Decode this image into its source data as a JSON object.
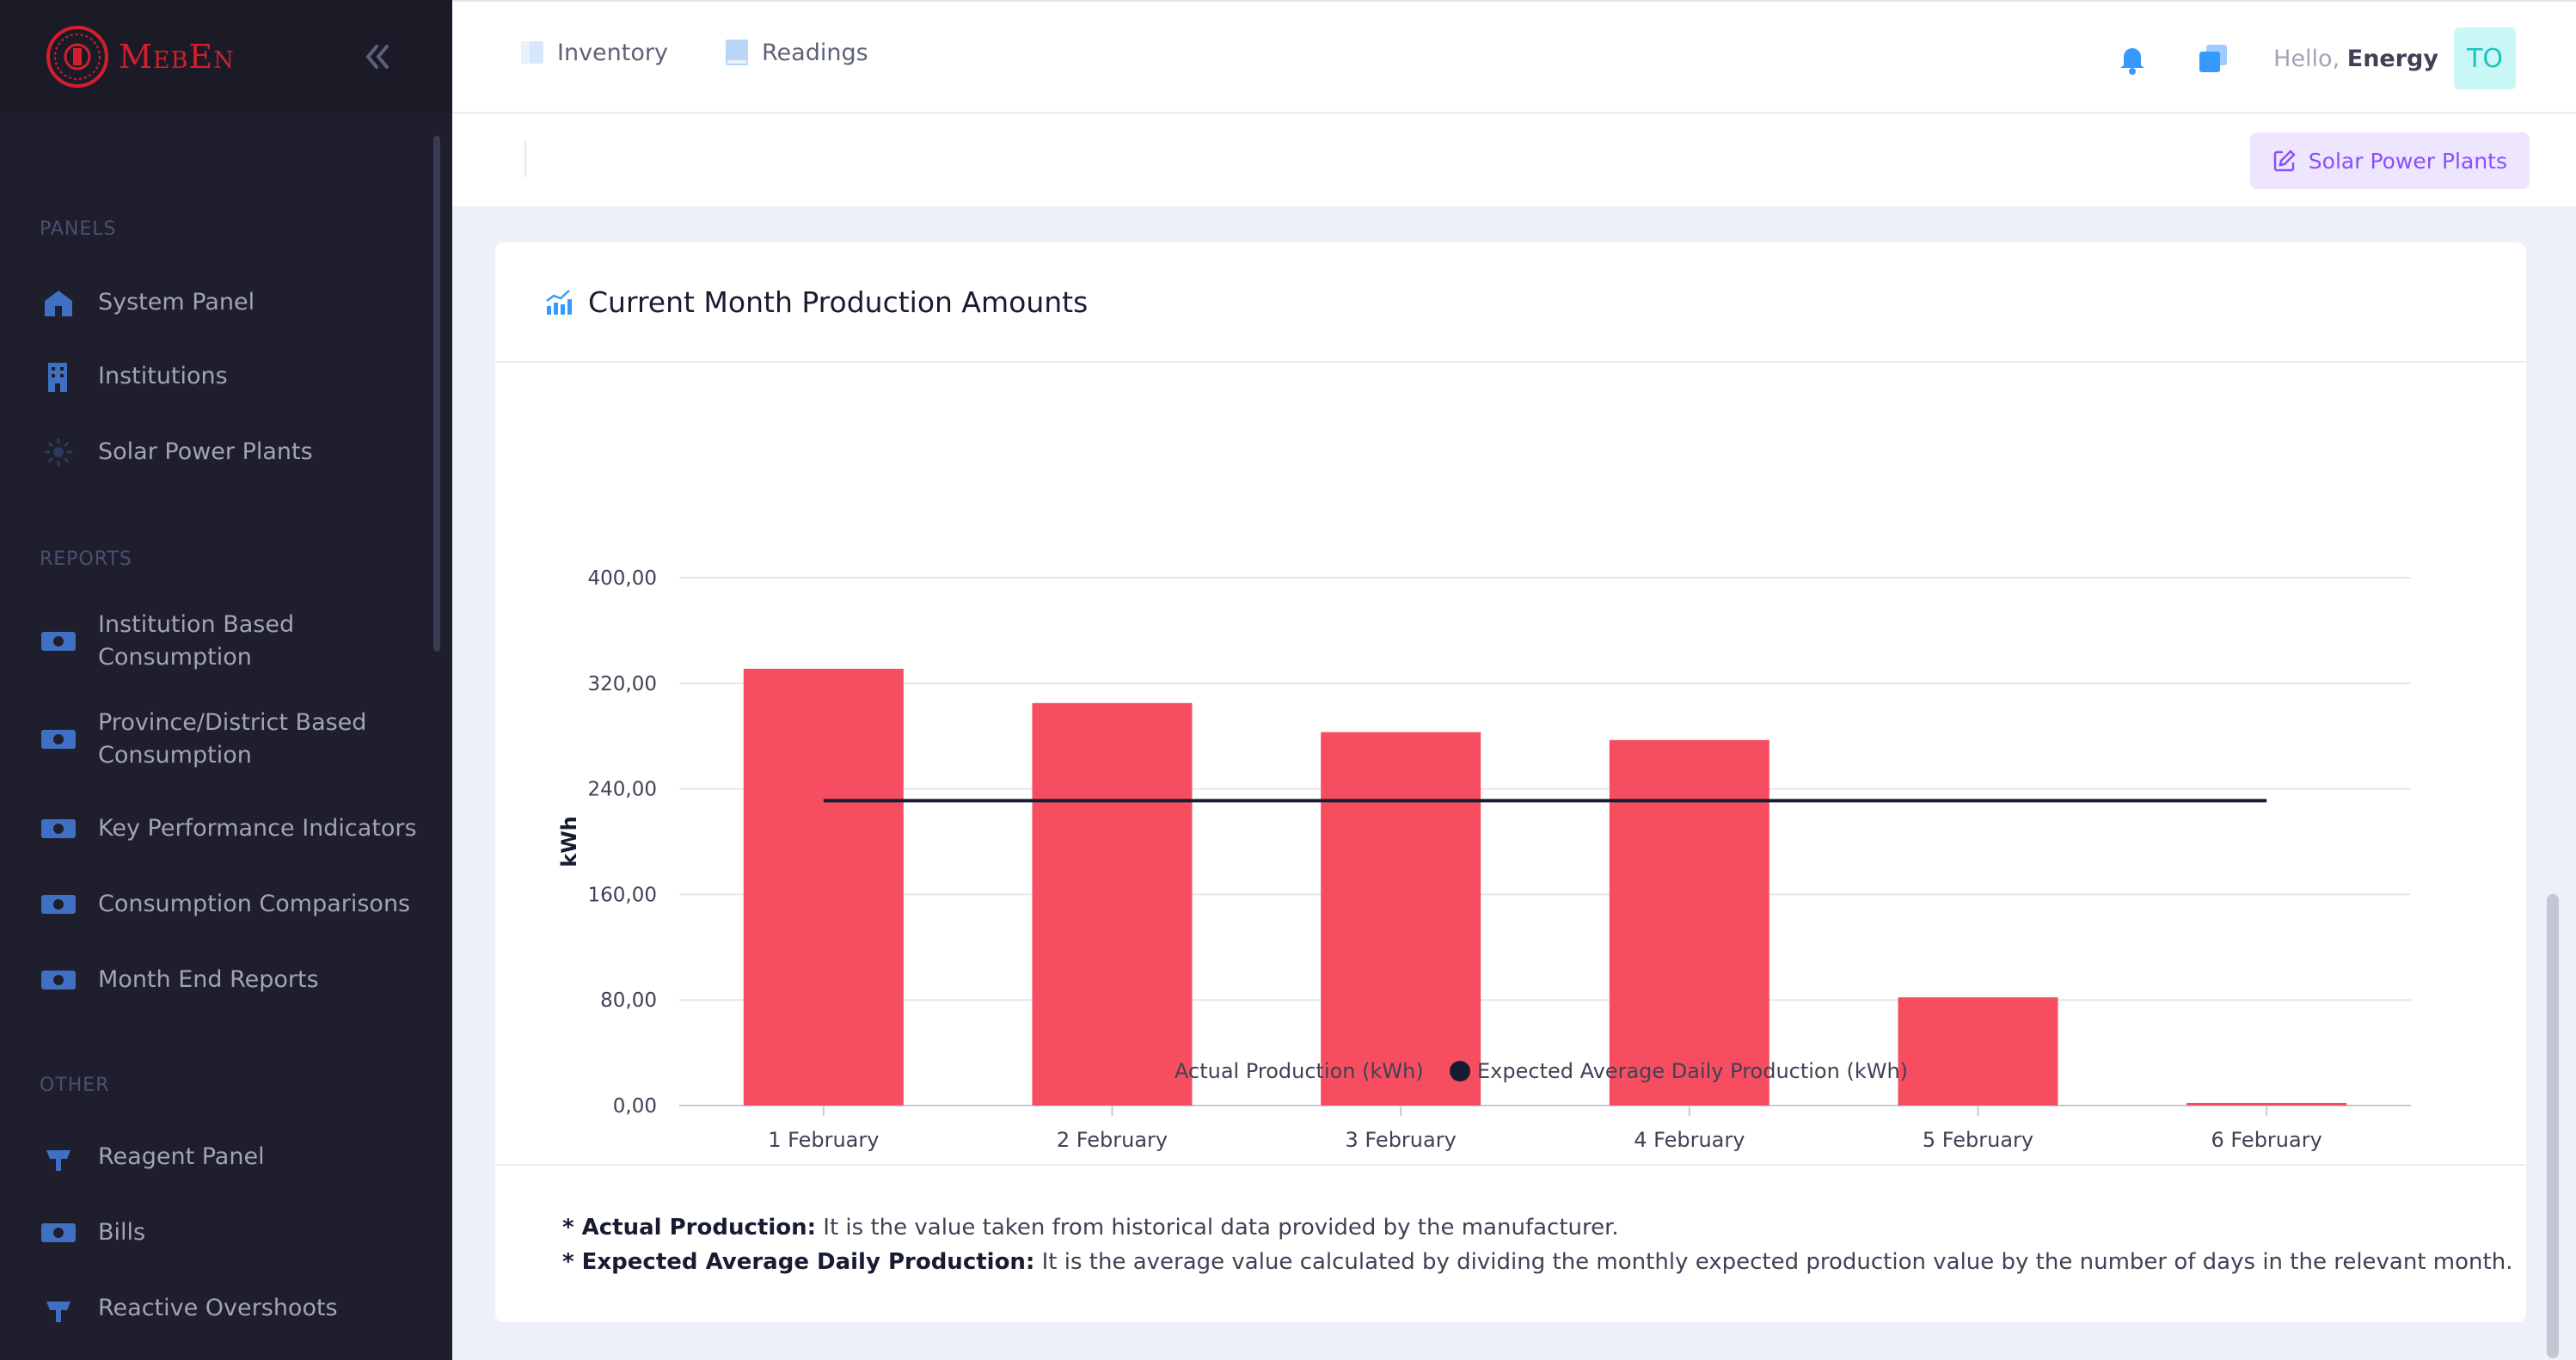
{
  "brand": {
    "name": "MebEn",
    "accent": "#d21f2b"
  },
  "sidebar": {
    "sections": [
      {
        "title": "PANELS",
        "items": [
          {
            "label": "System Panel",
            "icon": "home-icon"
          },
          {
            "label": "Institutions",
            "icon": "building-icon"
          },
          {
            "label": "Solar Power Plants",
            "icon": "sun-icon"
          }
        ]
      },
      {
        "title": "REPORTS",
        "items": [
          {
            "label": "Institution Based\nConsumption",
            "icon": "money-icon"
          },
          {
            "label": "Province/District Based\nConsumption",
            "icon": "money-icon"
          },
          {
            "label": "Key Performance Indicators",
            "icon": "money-icon"
          },
          {
            "label": "Consumption Comparisons",
            "icon": "money-icon"
          },
          {
            "label": "Month End Reports",
            "icon": "money-icon"
          }
        ]
      },
      {
        "title": "OTHER",
        "items": [
          {
            "label": "Reagent Panel",
            "icon": "plug-icon"
          },
          {
            "label": "Bills",
            "icon": "money-icon"
          },
          {
            "label": "Reactive Overshoots",
            "icon": "plug-icon"
          }
        ]
      }
    ]
  },
  "header": {
    "tabs": [
      {
        "label": "Inventory"
      },
      {
        "label": "Readings"
      }
    ],
    "greeting": "Hello,",
    "user_name": "Energy",
    "avatar_initials": "TO"
  },
  "subheader": {
    "button_label": "Solar Power Plants"
  },
  "card": {
    "title": "Current Month Production Amounts",
    "notes": [
      {
        "term": "* Actual Production:",
        "text": " It is the value taken from historical data provided by the manufacturer."
      },
      {
        "term": "* Expected Average Daily Production:",
        "text": " It is the average value calculated by dividing the monthly expected production value by the number of days in the relevant month."
      }
    ]
  },
  "chart_data": {
    "type": "bar",
    "categories": [
      "1 February",
      "2 February",
      "3 February",
      "4 February",
      "5 February",
      "6 February"
    ],
    "series": [
      {
        "name": "Actual Production (kWh)",
        "type": "bar",
        "color": "#f64e60",
        "values": [
          331,
          305,
          283,
          277,
          82,
          2
        ]
      },
      {
        "name": "Expected Average Daily Production (kWh)",
        "type": "line",
        "color": "#181c32",
        "values": [
          231,
          231,
          231,
          231,
          231,
          231
        ]
      }
    ],
    "ylabel": "kWh",
    "xlabel": "",
    "ylim": [
      0,
      400
    ],
    "yticks": [
      "0,00",
      "80,00",
      "160,00",
      "240,00",
      "320,00",
      "400,00"
    ],
    "grid": true,
    "legend": "bottom"
  }
}
